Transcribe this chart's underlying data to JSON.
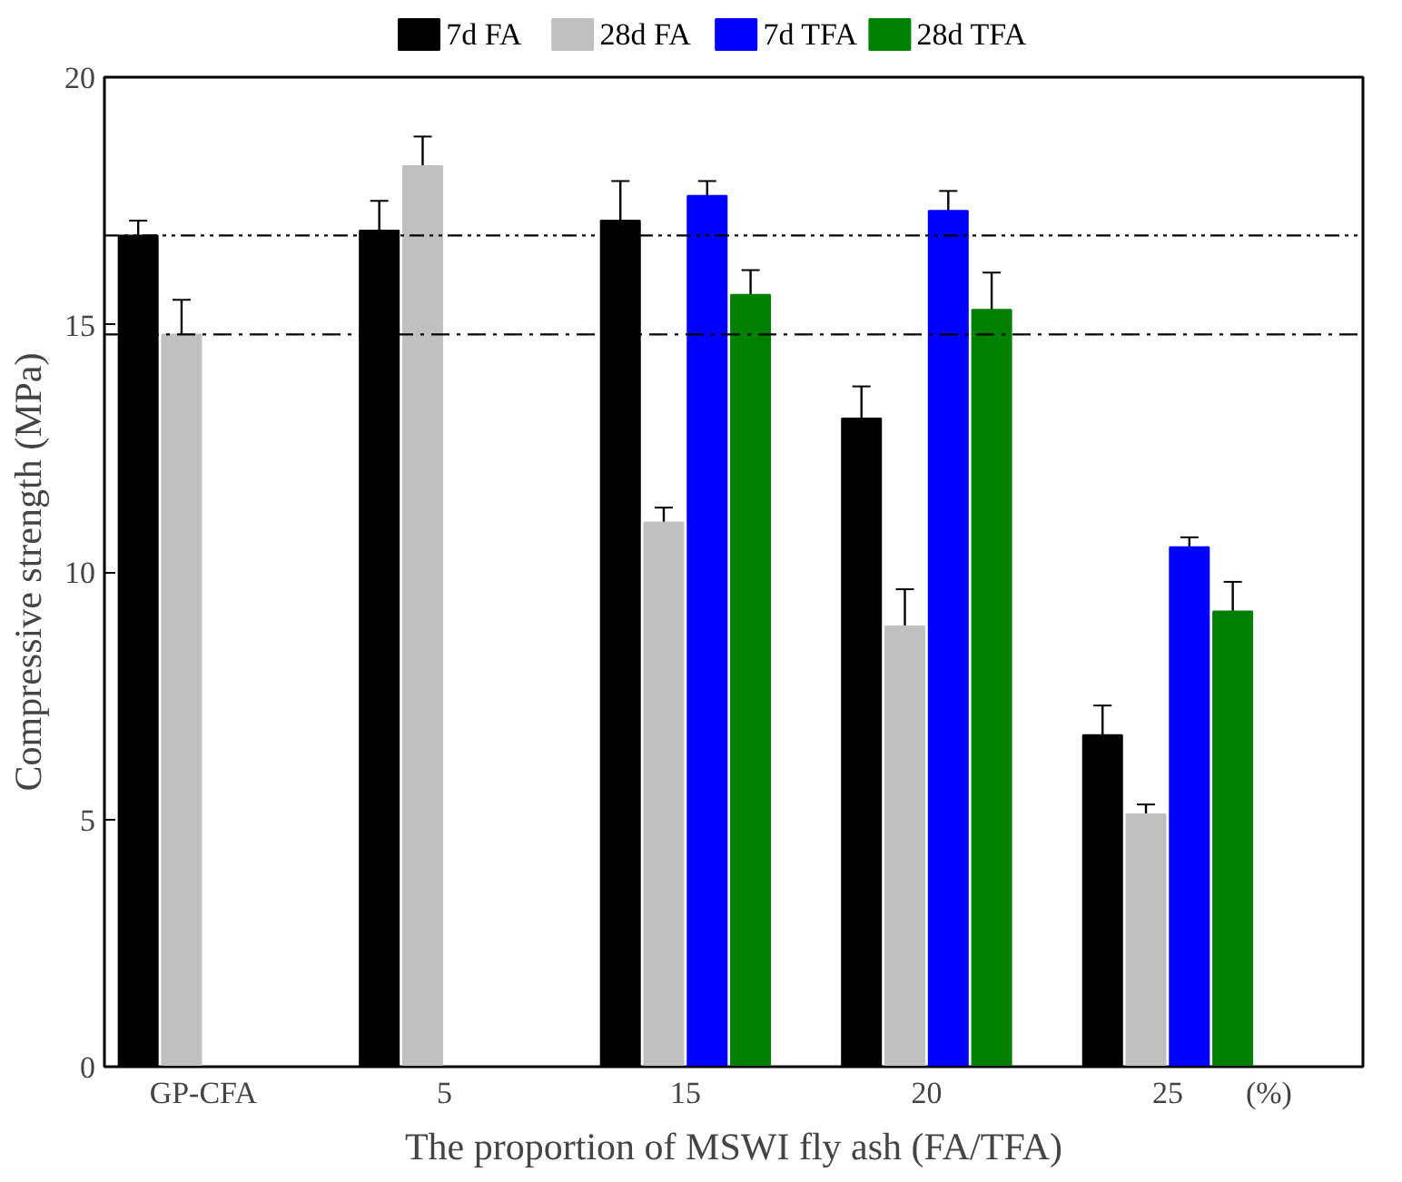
{
  "chart_data": {
    "type": "bar",
    "xlabel": "The proportion of MSWI fly ash (FA/TFA)",
    "ylabel": "Compressive strength (MPa)",
    "categories": [
      "GP-CFA",
      "5",
      "15",
      "20",
      "25"
    ],
    "series": [
      {
        "name": "7d FA",
        "color": "#000000",
        "values": [
          16.8,
          16.9,
          17.1,
          13.1,
          6.7
        ],
        "errors": [
          0.3,
          0.6,
          0.8,
          0.65,
          0.6
        ]
      },
      {
        "name": "28d FA",
        "color": "#c0c0c0",
        "values": [
          14.8,
          18.2,
          11.0,
          8.9,
          5.1
        ],
        "errors": [
          0.7,
          0.6,
          0.3,
          0.75,
          0.2
        ]
      },
      {
        "name": "7d TFA",
        "color": "#0000ff",
        "values": [
          null,
          null,
          17.6,
          17.3,
          10.5
        ],
        "errors": [
          null,
          null,
          0.3,
          0.4,
          0.2
        ]
      },
      {
        "name": "28d TFA",
        "color": "#008000",
        "values": [
          null,
          null,
          15.6,
          15.3,
          9.2
        ],
        "errors": [
          null,
          null,
          0.5,
          0.75,
          0.6
        ]
      }
    ],
    "ylim": [
      0,
      20
    ],
    "yticks": [
      0,
      5,
      10,
      15,
      20
    ],
    "grid": false,
    "legend": "top",
    "ref_lines": [
      {
        "axis": "y",
        "value": 16.8,
        "color": "#000000",
        "line_style": "dashdotdot"
      },
      {
        "axis": "y",
        "value": 14.8,
        "color": "#000000",
        "line_style": "dashdot"
      }
    ],
    "annotations": [
      "(%)"
    ]
  }
}
